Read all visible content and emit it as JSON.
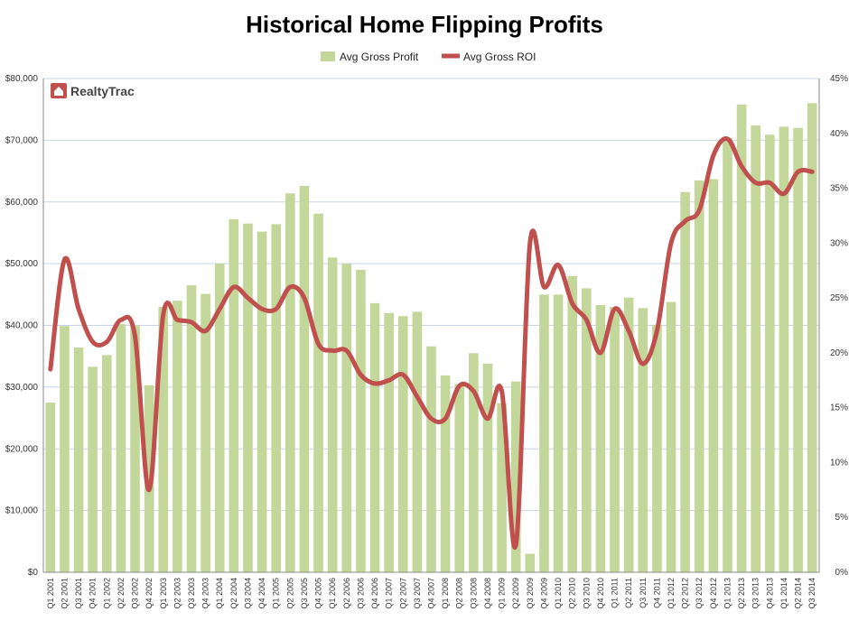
{
  "chart_data": {
    "type": "bar",
    "title": "Historical Home Flipping Profits",
    "logo": "RealtyTrac",
    "legend": [
      "Avg Gross Profit",
      "Avg Gross ROI"
    ],
    "legend_position": "top",
    "grid": true,
    "colors": {
      "bar": "#c4d79b",
      "line": "#c0504d",
      "grid": "#c8d4e6",
      "axis": "#888888",
      "logo": "#c0504d"
    },
    "categories": [
      "Q1 2001",
      "Q2 2001",
      "Q3 2001",
      "Q4 2001",
      "Q1 2002",
      "Q2 2002",
      "Q3 2002",
      "Q4 2002",
      "Q1 2003",
      "Q2 2003",
      "Q3 2003",
      "Q4 2003",
      "Q1 2004",
      "Q2 2004",
      "Q3 2004",
      "Q4 2004",
      "Q1 2005",
      "Q2 2005",
      "Q3 2005",
      "Q4 2005",
      "Q1 2006",
      "Q2 2006",
      "Q3 2006",
      "Q4 2006",
      "Q1 2007",
      "Q2 2007",
      "Q3 2007",
      "Q4 2007",
      "Q1 2008",
      "Q2 2008",
      "Q3 2008",
      "Q4 2008",
      "Q1 2009",
      "Q2 2009",
      "Q3 2009",
      "Q4 2009",
      "Q1 2010",
      "Q2 2010",
      "Q3 2010",
      "Q4 2010",
      "Q1 2011",
      "Q2 2011",
      "Q3 2011",
      "Q4 2011",
      "Q1 2012",
      "Q2 2012",
      "Q3 2012",
      "Q4 2012",
      "Q1 2013",
      "Q2 2013",
      "Q3 2013",
      "Q4 2013",
      "Q1 2014",
      "Q2 2014",
      "Q3 2014"
    ],
    "series": [
      {
        "name": "Avg Gross Profit",
        "type": "bar",
        "axis": "left",
        "values": [
          27500,
          39900,
          36400,
          33300,
          35200,
          40200,
          40000,
          30300,
          43000,
          44000,
          46500,
          45100,
          50000,
          57200,
          56500,
          55200,
          56400,
          61400,
          62600,
          58100,
          51000,
          50000,
          49000,
          43600,
          42000,
          41500,
          42200,
          36600,
          31900,
          30500,
          35500,
          33800,
          27400,
          30900,
          3000,
          45000,
          45000,
          48000,
          46000,
          43300,
          43000,
          44500,
          42800,
          40100,
          43800,
          61600,
          63500,
          63700,
          70400,
          75800,
          72400,
          70900,
          72200,
          72000,
          76000
        ]
      },
      {
        "name": "Avg Gross ROI",
        "type": "line",
        "axis": "right",
        "values": [
          18.5,
          28.5,
          24.0,
          21.0,
          21.0,
          23.0,
          21.5,
          7.5,
          23.5,
          23.0,
          22.8,
          22.0,
          24.0,
          26.0,
          25.0,
          24.0,
          24.0,
          26.0,
          25.0,
          20.8,
          20.2,
          20.2,
          18.0,
          17.2,
          17.5,
          18.0,
          16.0,
          14.0,
          14.0,
          17.0,
          16.5,
          14.0,
          16.5,
          2.5,
          30.0,
          26.0,
          28.0,
          24.5,
          23.0,
          20.0,
          24.0,
          22.0,
          19.0,
          22.0,
          30.0,
          32.0,
          33.0,
          38.0,
          39.5,
          37.0,
          35.5,
          35.5,
          34.5,
          36.5,
          36.5
        ]
      }
    ],
    "y_left": {
      "min": 0,
      "max": 80000,
      "ticks": [
        "$0",
        "$10,000",
        "$20,000",
        "$30,000",
        "$40,000",
        "$50,000",
        "$60,000",
        "$70,000",
        "$80,000"
      ]
    },
    "y_right": {
      "min": 0,
      "max": 45,
      "ticks": [
        "0%",
        "5%",
        "10%",
        "15%",
        "20%",
        "25%",
        "30%",
        "35%",
        "40%",
        "45%"
      ]
    }
  }
}
